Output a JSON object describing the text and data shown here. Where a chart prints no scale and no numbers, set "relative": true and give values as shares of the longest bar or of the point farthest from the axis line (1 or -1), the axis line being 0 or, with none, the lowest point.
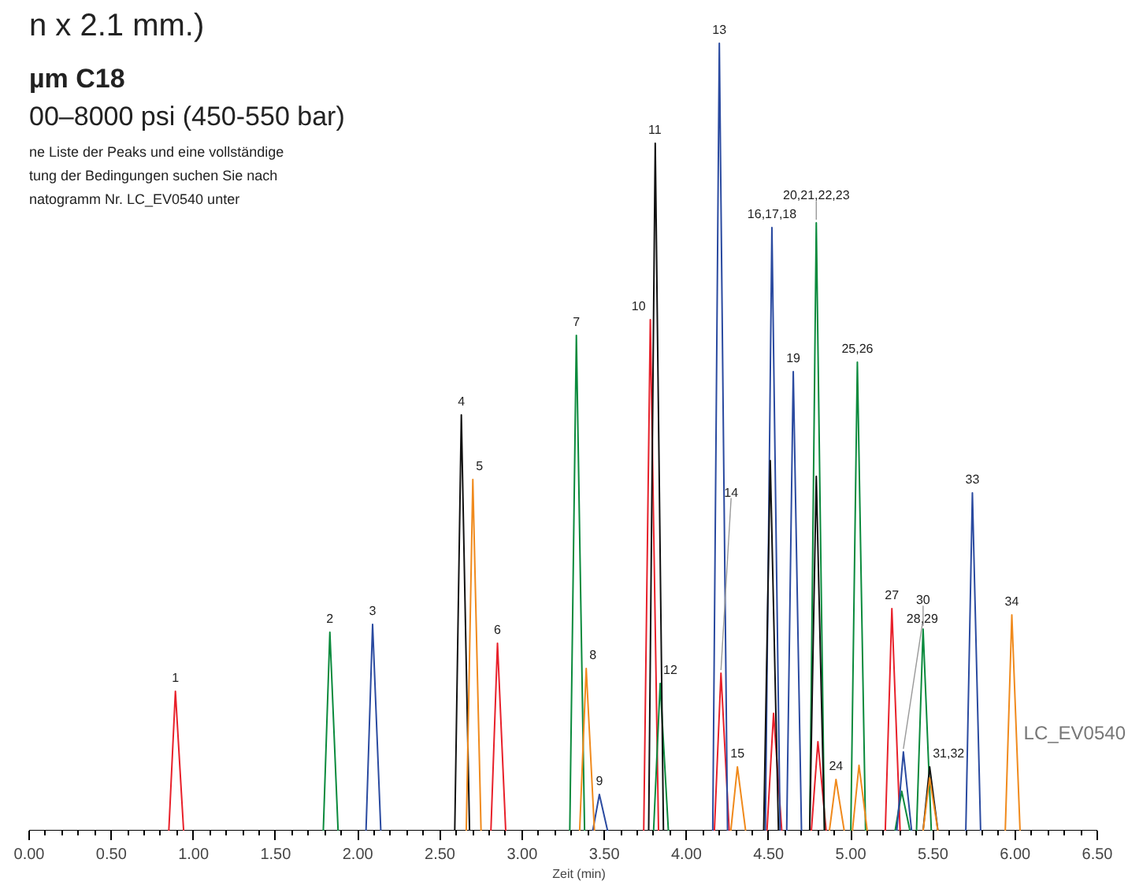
{
  "chart_data": {
    "type": "line",
    "relative": true,
    "title": "n x 2.1 mm.)",
    "subtitle": "µm C18",
    "xlabel": "Zeit (min)",
    "xlim": [
      0,
      6.5
    ],
    "xticks": [
      {
        "value": 0,
        "label": "0.00"
      },
      {
        "value": 0.1,
        "label": null
      },
      {
        "value": 0.2,
        "label": null
      },
      {
        "value": 0.3,
        "label": null
      },
      {
        "value": 0.4,
        "label": null
      },
      {
        "value": 0.5,
        "label": "0.50"
      },
      {
        "value": 0.6,
        "label": null
      },
      {
        "value": 0.7,
        "label": null
      },
      {
        "value": 0.8,
        "label": null
      },
      {
        "value": 0.9,
        "label": null
      },
      {
        "value": 1,
        "label": "1.00"
      },
      {
        "value": 1.1,
        "label": null
      },
      {
        "value": 1.2,
        "label": null
      },
      {
        "value": 1.3,
        "label": null
      },
      {
        "value": 1.4,
        "label": null
      },
      {
        "value": 1.5,
        "label": "1.50"
      },
      {
        "value": 1.6,
        "label": null
      },
      {
        "value": 1.7,
        "label": null
      },
      {
        "value": 1.8,
        "label": null
      },
      {
        "value": 1.9,
        "label": null
      },
      {
        "value": 2,
        "label": "2.00"
      },
      {
        "value": 2.1,
        "label": null
      },
      {
        "value": 2.2,
        "label": null
      },
      {
        "value": 2.3,
        "label": null
      },
      {
        "value": 2.4,
        "label": null
      },
      {
        "value": 2.5,
        "label": "2.50"
      },
      {
        "value": 2.6,
        "label": null
      },
      {
        "value": 2.7,
        "label": null
      },
      {
        "value": 2.8,
        "label": null
      },
      {
        "value": 2.9,
        "label": null
      },
      {
        "value": 3,
        "label": "3.00"
      },
      {
        "value": 3.1,
        "label": null
      },
      {
        "value": 3.2,
        "label": null
      },
      {
        "value": 3.3,
        "label": null
      },
      {
        "value": 3.4,
        "label": null
      },
      {
        "value": 3.5,
        "label": "3.50"
      },
      {
        "value": 3.6,
        "label": null
      },
      {
        "value": 3.7,
        "label": null
      },
      {
        "value": 3.8,
        "label": null
      },
      {
        "value": 3.9,
        "label": null
      },
      {
        "value": 4,
        "label": "4.00"
      },
      {
        "value": 4.1,
        "label": null
      },
      {
        "value": 4.2,
        "label": null
      },
      {
        "value": 4.3,
        "label": null
      },
      {
        "value": 4.4,
        "label": null
      },
      {
        "value": 4.5,
        "label": "4.50"
      },
      {
        "value": 4.6,
        "label": null
      },
      {
        "value": 4.7,
        "label": null
      },
      {
        "value": 4.8,
        "label": null
      },
      {
        "value": 4.9,
        "label": null
      },
      {
        "value": 5,
        "label": "5.00"
      },
      {
        "value": 5.1,
        "label": null
      },
      {
        "value": 5.2,
        "label": null
      },
      {
        "value": 5.3,
        "label": null
      },
      {
        "value": 5.4,
        "label": null
      },
      {
        "value": 5.5,
        "label": "5.50"
      },
      {
        "value": 5.6,
        "label": null
      },
      {
        "value": 5.7,
        "label": null
      },
      {
        "value": 5.8,
        "label": null
      },
      {
        "value": 5.9,
        "label": null
      },
      {
        "value": 6,
        "label": "6.00"
      },
      {
        "value": 6.1,
        "label": null
      },
      {
        "value": 6.2,
        "label": null
      },
      {
        "value": 6.3,
        "label": null
      },
      {
        "value": 6.4,
        "label": null
      },
      {
        "value": 6.5,
        "label": "6.50"
      }
    ],
    "tick_labels": "x",
    "grid": false,
    "line_style": "solid",
    "marker": "none",
    "series": [
      {
        "color": "#e8202a",
        "x": [
          0.85,
          0.89,
          0.94,
          null,
          2.81,
          2.85,
          2.9,
          null,
          3.74,
          3.78,
          3.83,
          null,
          4.17,
          4.21,
          4.26,
          null,
          4.49,
          4.53,
          4.58,
          null,
          4.76,
          4.8,
          4.85,
          null,
          5.21,
          5.25,
          5.3
        ],
        "values": [
          0,
          0.177,
          0,
          null,
          0,
          0.238,
          0,
          null,
          0,
          0.649,
          0,
          null,
          0,
          0.2,
          0,
          null,
          0,
          0.149,
          0,
          null,
          0,
          0.113,
          0,
          null,
          0,
          0.282,
          0
        ]
      },
      {
        "color": "#0a8a3c",
        "x": [
          1.79,
          1.83,
          1.88,
          null,
          3.29,
          3.33,
          3.38,
          null,
          3.8,
          3.84,
          3.89,
          null,
          4.75,
          4.79,
          4.84,
          null,
          5.0,
          5.04,
          5.09,
          null,
          5.27,
          5.31,
          5.36,
          null,
          5.4,
          5.44,
          5.49
        ],
        "values": [
          0,
          0.252,
          0,
          null,
          0,
          0.629,
          0,
          null,
          0,
          0.187,
          0,
          null,
          0,
          0.772,
          0,
          null,
          0,
          0.595,
          0,
          null,
          0,
          0.05,
          0,
          null,
          0,
          0.256,
          0
        ]
      },
      {
        "color": "#2a4aa0",
        "x": [
          2.05,
          2.09,
          2.14,
          null,
          3.43,
          3.47,
          3.52,
          null,
          4.16,
          4.2,
          4.25,
          null,
          4.48,
          4.52,
          4.57,
          null,
          4.61,
          4.65,
          4.7,
          null,
          5.28,
          5.32,
          5.37,
          null,
          5.7,
          5.74,
          5.79
        ],
        "values": [
          0,
          0.262,
          0,
          null,
          0,
          0.046,
          0,
          null,
          0,
          1,
          0,
          null,
          0,
          0.766,
          0,
          null,
          0,
          0.583,
          0,
          null,
          0,
          0.1,
          0,
          null,
          0,
          0.429,
          0
        ]
      },
      {
        "color": "#111111",
        "x": [
          2.59,
          2.63,
          2.68,
          null,
          3.77,
          3.81,
          3.86,
          null,
          4.47,
          4.51,
          4.56,
          null,
          4.75,
          4.79,
          4.84,
          null,
          5.44,
          5.48,
          5.53
        ],
        "values": [
          0,
          0.528,
          0,
          null,
          0,
          0.873,
          0,
          null,
          0,
          0.47,
          0,
          null,
          0,
          0.45,
          0,
          null,
          0,
          0.081,
          0
        ]
      },
      {
        "color": "#f08a1c",
        "x": [
          2.66,
          2.7,
          2.75,
          null,
          3.35,
          3.39,
          3.44,
          null,
          4.27,
          4.31,
          4.36,
          null,
          4.87,
          4.91,
          4.96,
          null,
          5.01,
          5.05,
          5.1,
          null,
          5.44,
          5.48,
          5.53,
          null,
          5.94,
          5.98,
          6.03
        ],
        "values": [
          0,
          0.446,
          0,
          null,
          0,
          0.206,
          0,
          null,
          0,
          0.081,
          0,
          null,
          0,
          0.065,
          0,
          null,
          0,
          0.083,
          0,
          null,
          0,
          0.067,
          0,
          null,
          0,
          0.274,
          0
        ]
      }
    ],
    "annotations": [
      "00–8000 psi (450-550 bar)",
      "ne Liste der Peaks und eine vollständige",
      "tung der Bedingungen suchen Sie nach",
      "natogramm Nr. LC_EV0540 unter",
      "LC_EV0540",
      {
        "text": "1",
        "x": 0.89,
        "y": 0.177
      },
      {
        "text": "2",
        "x": 1.83,
        "y": 0.252
      },
      {
        "text": "3",
        "x": 2.09,
        "y": 0.262
      },
      {
        "text": "4",
        "x": 2.63,
        "y": 0.528
      },
      {
        "text": "5",
        "x": 2.7,
        "y": 0.446
      },
      {
        "text": "6",
        "x": 2.85,
        "y": 0.238
      },
      {
        "text": "7",
        "x": 3.33,
        "y": 0.629
      },
      {
        "text": "8",
        "x": 3.39,
        "y": 0.206
      },
      {
        "text": "9",
        "x": 3.47,
        "y": 0.046
      },
      {
        "text": "10",
        "x": 3.78,
        "y": 0.649
      },
      {
        "text": "11",
        "x": 3.81,
        "y": 0.873
      },
      {
        "text": "12",
        "x": 3.84,
        "y": 0.187
      },
      {
        "text": "13",
        "x": 4.2,
        "y": 1
      },
      {
        "text": "14",
        "x": 4.21,
        "y": 0.2
      },
      {
        "text": "15",
        "x": 4.31,
        "y": 0.081
      },
      {
        "text": "16,17,18",
        "x": 4.52,
        "y": 0.766
      },
      {
        "text": "19",
        "x": 4.65,
        "y": 0.583
      },
      {
        "text": "20,21,22,23",
        "x": 4.79,
        "y": 0.772
      },
      {
        "text": "24",
        "x": 4.91,
        "y": 0.065
      },
      {
        "text": "25,26",
        "x": 5.04,
        "y": 0.595
      },
      {
        "text": "27",
        "x": 5.25,
        "y": 0.282
      },
      {
        "text": "28,29",
        "x": 5.32,
        "y": 0.1
      },
      {
        "text": "30",
        "x": 5.44,
        "y": 0.256
      },
      {
        "text": "31,32",
        "x": 5.48,
        "y": 0.081
      },
      {
        "text": "33",
        "x": 5.74,
        "y": 0.429
      },
      {
        "text": "34",
        "x": 5.98,
        "y": 0.274
      }
    ]
  }
}
